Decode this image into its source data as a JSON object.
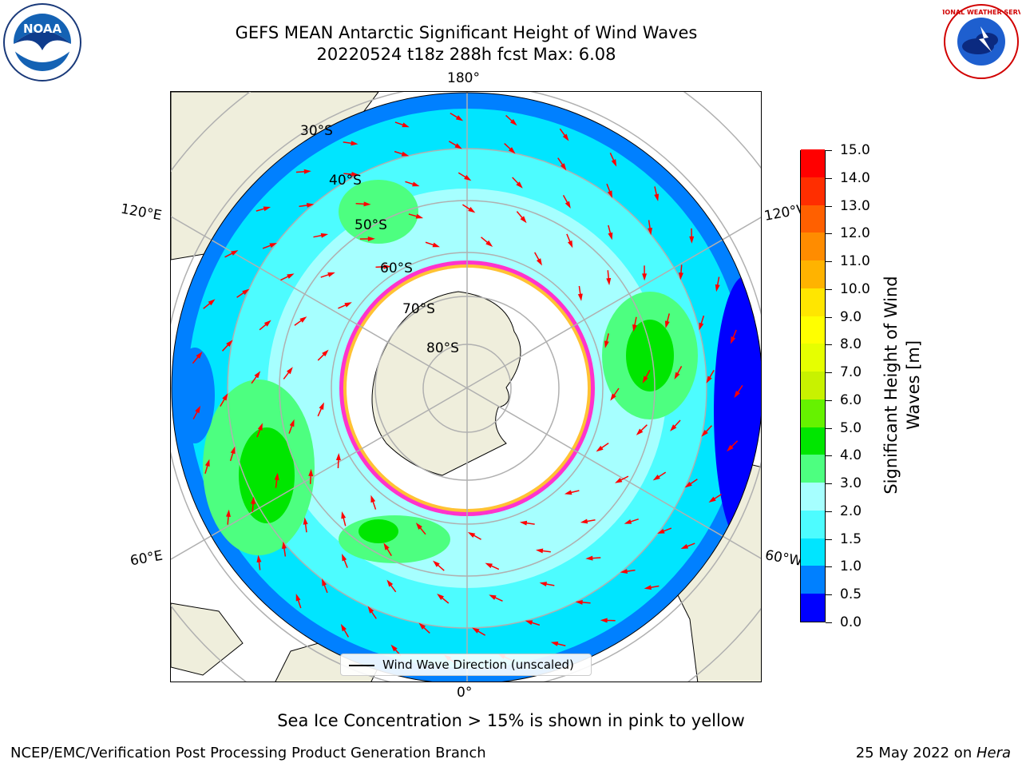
{
  "header": {
    "title_line1": "GEFS MEAN Antarctic Significant Height of Wind Waves",
    "title_line2": "20220524 t18z 288h fcst   Max: 6.08"
  },
  "logos": {
    "left": {
      "name": "noaa-logo",
      "text": "NOAA"
    },
    "right": {
      "name": "national-weather-service-logo",
      "text": "NATIONAL WEATHER SERVICE"
    }
  },
  "map": {
    "longitude_labels": {
      "top": "180°",
      "bottom": "0°",
      "upper_left": "120°E",
      "upper_right": "120°W",
      "lower_left": "60°E",
      "lower_right": "60°W"
    },
    "latitude_labels": [
      "30°S",
      "40°S",
      "50°S",
      "60°S",
      "70°S",
      "80°S"
    ],
    "colors": {
      "land": "#efeedc",
      "sea_ice": "#ffffff",
      "ice_edge": "#ff33cc",
      "ice_edge_inner": "#ffc233",
      "grid": "#b0b0b0",
      "arrow": "#ff0000"
    }
  },
  "legend": {
    "label": "Wind Wave Direction (unscaled)"
  },
  "colorbar": {
    "title_line1": "Significant Height of Wind",
    "title_line2": "Waves [m]",
    "tick_labels": [
      "15.0",
      "14.0",
      "13.0",
      "12.0",
      "11.0",
      "10.0",
      "9.0",
      "8.0",
      "7.0",
      "6.0",
      "5.0",
      "4.0",
      "3.0",
      "2.0",
      "1.5",
      "1.0",
      "0.5",
      "0.0"
    ],
    "levels": [
      0.0,
      0.5,
      1.0,
      1.5,
      2.0,
      3.0,
      4.0,
      5.0,
      6.0,
      7.0,
      8.0,
      9.0,
      10.0,
      11.0,
      12.0,
      13.0,
      14.0,
      15.0
    ],
    "colors": [
      "#0000ff",
      "#0080ff",
      "#00e5ff",
      "#4dfcff",
      "#a6ffff",
      "#4dff80",
      "#00e600",
      "#66f200",
      "#c8f200",
      "#e6ff00",
      "#ffff00",
      "#ffe600",
      "#ffb300",
      "#ff8c00",
      "#ff6000",
      "#ff2e00",
      "#ff0000"
    ]
  },
  "footer": {
    "note": "Sea Ice Concentration > 15% is shown in pink to yellow",
    "left": "NCEP/EMC/Verification Post Processing Product Generation Branch",
    "right_date": "25 May 2022 on ",
    "right_host": "Hera"
  }
}
